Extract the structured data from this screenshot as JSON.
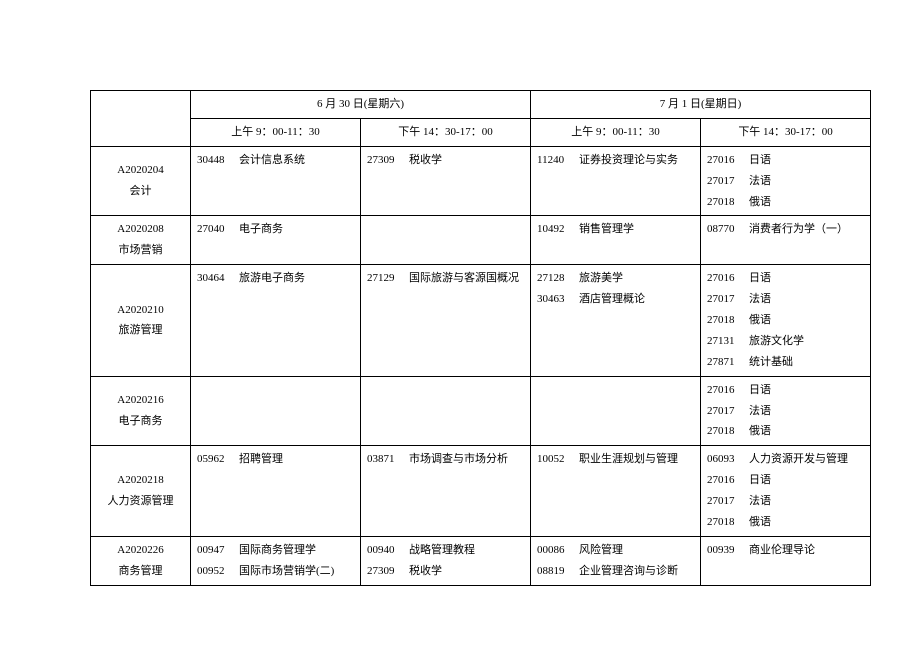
{
  "header": {
    "day1": "6 月 30 日(星期六)",
    "day2": "7 月 1 日(星期日)",
    "slot_am": "上午 9：00-11：30",
    "slot_pm": "下午 14：30-17：00"
  },
  "majors": [
    {
      "code": "A2020204",
      "name": "会计",
      "d1am": [
        {
          "code": "30448",
          "name": "会计信息系统"
        }
      ],
      "d1pm": [
        {
          "code": "27309",
          "name": "税收学"
        }
      ],
      "d2am": [
        {
          "code": "11240",
          "name": "证券投资理论与实务"
        }
      ],
      "d2pm": [
        {
          "code": "27016",
          "name": "日语"
        },
        {
          "code": "27017",
          "name": "法语"
        },
        {
          "code": "27018",
          "name": "俄语"
        }
      ]
    },
    {
      "code": "A2020208",
      "name": "市场营销",
      "d1am": [
        {
          "code": "27040",
          "name": "电子商务"
        }
      ],
      "d1pm": [],
      "d2am": [
        {
          "code": "10492",
          "name": "销售管理学"
        }
      ],
      "d2pm": [
        {
          "code": "08770",
          "name": "消费者行为学（一）"
        }
      ]
    },
    {
      "code": "A2020210",
      "name": "旅游管理",
      "d1am": [
        {
          "code": "30464",
          "name": "旅游电子商务"
        }
      ],
      "d1pm": [
        {
          "code": "27129",
          "name": "国际旅游与客源国概况"
        }
      ],
      "d2am": [
        {
          "code": "27128",
          "name": "旅游美学"
        },
        {
          "code": "30463",
          "name": "酒店管理概论"
        }
      ],
      "d2pm": [
        {
          "code": "27016",
          "name": "日语"
        },
        {
          "code": "27017",
          "name": "法语"
        },
        {
          "code": "27018",
          "name": "俄语"
        },
        {
          "code": "27131",
          "name": "旅游文化学"
        },
        {
          "code": "27871",
          "name": "统计基础"
        }
      ]
    },
    {
      "code": "A2020216",
      "name": "电子商务",
      "d1am": [],
      "d1pm": [],
      "d2am": [],
      "d2pm": [
        {
          "code": "27016",
          "name": "日语"
        },
        {
          "code": "27017",
          "name": "法语"
        },
        {
          "code": "27018",
          "name": "俄语"
        }
      ]
    },
    {
      "code": "A2020218",
      "name": "人力资源管理",
      "d1am": [
        {
          "code": "05962",
          "name": "招聘管理"
        }
      ],
      "d1pm": [
        {
          "code": "03871",
          "name": "市场调查与市场分析"
        }
      ],
      "d2am": [
        {
          "code": "10052",
          "name": "职业生涯规划与管理"
        }
      ],
      "d2pm": [
        {
          "code": "06093",
          "name": "人力资源开发与管理"
        },
        {
          "code": "27016",
          "name": "日语"
        },
        {
          "code": "27017",
          "name": "法语"
        },
        {
          "code": "27018",
          "name": "俄语"
        }
      ]
    },
    {
      "code": "A2020226",
      "name": "商务管理",
      "d1am": [
        {
          "code": "00947",
          "name": "国际商务管理学"
        },
        {
          "code": "00952",
          "name": "国际市场营销学(二)"
        }
      ],
      "d1pm": [
        {
          "code": "00940",
          "name": "战略管理教程"
        },
        {
          "code": "27309",
          "name": "税收学"
        }
      ],
      "d2am": [
        {
          "code": "00086",
          "name": "风险管理"
        },
        {
          "code": "08819",
          "name": "企业管理咨询与诊断"
        }
      ],
      "d2pm": [
        {
          "code": "00939",
          "name": "商业伦理导论"
        }
      ]
    }
  ]
}
